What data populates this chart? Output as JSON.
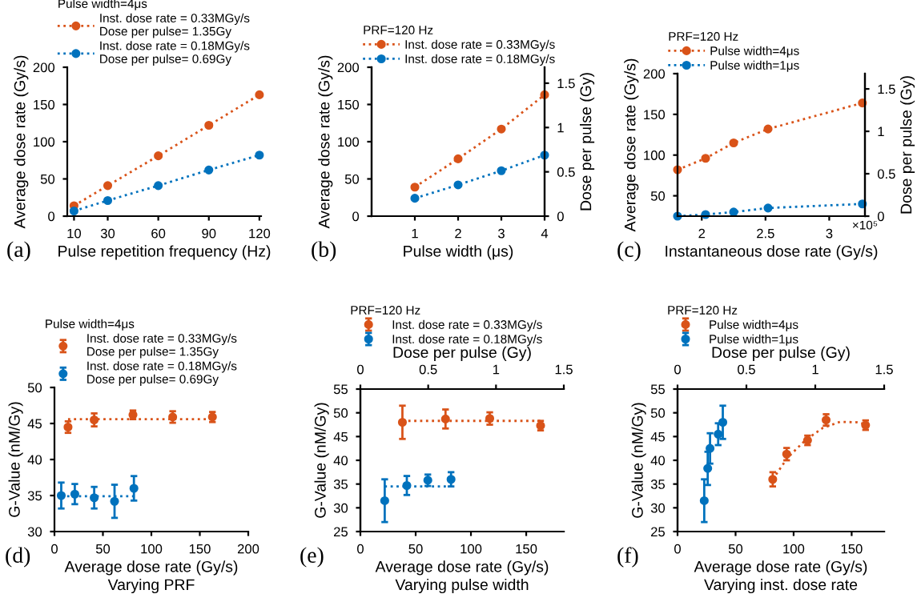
{
  "chart_data": [
    {
      "type": "line",
      "xlabel": "Pulse repetition frequency (Hz)",
      "ylabel": "Average dose rate (Gy/s)",
      "legend_title": "Pulse width=4μs",
      "legend": "top",
      "marker": "circle",
      "line_style": "dotted",
      "annotations": [
        "(a)"
      ],
      "x": [
        10,
        30,
        60,
        90,
        120
      ],
      "xlim": [
        6,
        121
      ],
      "xticks": [
        10,
        30,
        60,
        90,
        120
      ],
      "ylim": [
        0,
        200
      ],
      "yticks": [
        0,
        50,
        100,
        150,
        200
      ],
      "series": [
        {
          "name": "Inst. dose rate = 0.33MGy/s\nDose per pulse= 1.35Gy",
          "color": "#d95319",
          "values": [
            14,
            41,
            81,
            122,
            163
          ]
        },
        {
          "name": "Inst. dose rate = 0.18MGy/s\nDose per pulse= 0.69Gy",
          "color": "#0072bd",
          "values": [
            7,
            21,
            41,
            62,
            82
          ]
        }
      ]
    },
    {
      "type": "line",
      "xlabel": "Pulse width (μs)",
      "ylabel": "Average dose rate (Gy/s)",
      "y2label": "Dose per pulse (Gy)",
      "legend_title": "PRF=120 Hz",
      "legend": "top",
      "marker": "circle",
      "line_style": "dotted",
      "annotations": [
        "(b)"
      ],
      "x": [
        1,
        2,
        3,
        4
      ],
      "xlim": [
        0,
        4
      ],
      "xticks": [
        1,
        2,
        3,
        4
      ],
      "ylim": [
        0,
        200
      ],
      "yticks": [
        0,
        50,
        100,
        150,
        200
      ],
      "y2lim": [
        0,
        1.68
      ],
      "y2ticks": [
        0,
        0.5,
        1,
        1.5
      ],
      "series": [
        {
          "name": "Inst. dose rate = 0.33MGy/s",
          "color": "#d95319",
          "values": [
            39,
            77,
            117,
            163
          ]
        },
        {
          "name": "Inst. dose rate = 0.18MGy/s",
          "color": "#0072bd",
          "values": [
            24,
            42,
            61,
            82
          ]
        }
      ]
    },
    {
      "type": "line",
      "xlabel": "Instantaneous dose rate (Gy/s)",
      "ylabel": "Average dose rate (Gy/s)",
      "y2label": "Dose per pulse (Gy)",
      "legend_title": "PRF=120 Hz",
      "legend": "top",
      "marker": "circle",
      "line_style": "dotted",
      "annotations": [
        "(c)",
        "×10⁵"
      ],
      "x": [
        1.81,
        2.03,
        2.25,
        2.52,
        3.26
      ],
      "xlim": [
        1.81,
        3.28
      ],
      "xticks": [
        2,
        2.5,
        3
      ],
      "ylim": [
        25,
        200
      ],
      "yticks": [
        50,
        100,
        150,
        200
      ],
      "y2lim": [
        0,
        1.68
      ],
      "y2ticks": [
        0,
        0.5,
        1,
        1.5
      ],
      "series": [
        {
          "name": "Pulse width=4μs",
          "color": "#d95319",
          "values": [
            82,
            96,
            115,
            132,
            164
          ]
        },
        {
          "name": "Pulse width=1μs",
          "color": "#0072bd",
          "values": [
            25,
            27,
            30,
            35,
            40
          ]
        }
      ]
    },
    {
      "type": "scatter",
      "xlabel": "Average dose rate (Gy/s)",
      "ylabel": "G-Value (nM/Gy)",
      "subtitle": "Varying PRF",
      "legend_title": "Pulse width=4μs",
      "legend": "top",
      "marker": "circle",
      "line_style": "dotted",
      "annotations": [
        "(d)"
      ],
      "xlim": [
        0,
        200
      ],
      "xticks": [
        0,
        50,
        100,
        150,
        200
      ],
      "ylim": [
        30,
        50
      ],
      "yticks": [
        30,
        35,
        40,
        45,
        50
      ],
      "series": [
        {
          "name": "Inst. dose rate = 0.33MGy/s\nDose per pulse= 1.35Gy",
          "color": "#d95319",
          "x": [
            14,
            41,
            81,
            122,
            163
          ],
          "values": [
            44.5,
            45.5,
            46.2,
            45.9,
            45.9
          ],
          "errors": [
            0.8,
            0.9,
            0.6,
            0.8,
            0.7
          ]
        },
        {
          "name": "Inst. dose rate = 0.18MGy/s\nDose per pulse= 0.69Gy",
          "color": "#0072bd",
          "x": [
            7,
            21,
            41,
            62,
            82
          ],
          "values": [
            35,
            35.2,
            34.7,
            34.2,
            36
          ],
          "errors": [
            1.8,
            1.4,
            1.5,
            2.3,
            1.7
          ]
        },
        {
          "type": "line",
          "marker": "none",
          "color": "#d95319",
          "x": [
            14,
            163
          ],
          "values": [
            45.6,
            45.6
          ]
        },
        {
          "type": "line",
          "marker": "none",
          "color": "#0072bd",
          "x": [
            7,
            82
          ],
          "values": [
            34.9,
            34.9
          ]
        }
      ]
    },
    {
      "type": "scatter",
      "xlabel": "Average dose rate (Gy/s)",
      "x2label": "Dose per pulse (Gy)",
      "ylabel": "G-Value (nM/Gy)",
      "subtitle": "Varying pulse width",
      "legend_title": "PRF=120 Hz",
      "legend": "top",
      "marker": "circle",
      "line_style": "dotted",
      "annotations": [
        "(e)"
      ],
      "xlim": [
        0,
        184
      ],
      "xticks": [
        0,
        50,
        100,
        150
      ],
      "x2lim": [
        0,
        1.5
      ],
      "x2ticks": [
        0,
        0.5,
        1,
        1.5
      ],
      "ylim": [
        25,
        55
      ],
      "yticks": [
        25,
        30,
        35,
        40,
        45,
        50,
        55
      ],
      "series": [
        {
          "name": "Inst. dose rate = 0.33MGy/s",
          "color": "#d95319",
          "x": [
            38,
            77,
            117,
            163
          ],
          "values": [
            48,
            48.7,
            48.8,
            47.3
          ],
          "errors": [
            3.5,
            2,
            1.3,
            1
          ]
        },
        {
          "name": "Inst. dose rate = 0.18MGy/s",
          "color": "#0072bd",
          "x": [
            22,
            42,
            61,
            82
          ],
          "values": [
            31.5,
            34.7,
            35.8,
            36
          ],
          "errors": [
            4.5,
            2,
            1.2,
            1.5
          ]
        },
        {
          "type": "line",
          "marker": "none",
          "color": "#d95319",
          "x": [
            38,
            163
          ],
          "values": [
            48.3,
            48.3
          ]
        },
        {
          "type": "line",
          "marker": "none",
          "color": "#0072bd",
          "x": [
            22,
            82
          ],
          "values": [
            34.5,
            34.5
          ]
        }
      ]
    },
    {
      "type": "scatter",
      "xlabel": "Average dose rate (Gy/s)",
      "x2label": "Dose per pulse (Gy)",
      "ylabel": "G-Value (nM/Gy)",
      "subtitle": "Varying inst. dose rate",
      "legend_title": "PRF=120 Hz",
      "legend": "top",
      "marker": "circle",
      "line_style": "dotted",
      "annotations": [
        "(f)"
      ],
      "xlim": [
        0,
        178
      ],
      "xticks": [
        0,
        50,
        100,
        150
      ],
      "x2lim": [
        0,
        1.5
      ],
      "x2ticks": [
        0,
        0.5,
        1,
        1.5
      ],
      "ylim": [
        25,
        55
      ],
      "yticks": [
        25,
        30,
        35,
        40,
        45,
        50,
        55
      ],
      "series": [
        {
          "name": "Pulse width=4μs",
          "color": "#d95319",
          "x": [
            82,
            94,
            112,
            128,
            162
          ],
          "values": [
            36,
            41.3,
            44.2,
            48.5,
            47.4
          ],
          "errors": [
            1.5,
            1.3,
            1,
            1.2,
            1
          ]
        },
        {
          "name": "Pulse width=1μs",
          "color": "#0072bd",
          "x": [
            23,
            26,
            28,
            35,
            39
          ],
          "values": [
            31.5,
            38.3,
            42.5,
            45.5,
            48
          ],
          "errors": [
            4.5,
            3.5,
            3.2,
            2.3,
            3.5
          ]
        },
        {
          "type": "line",
          "marker": "none",
          "color": "#d95319",
          "x": [
            82,
            95,
            110,
            125,
            140,
            155,
            162
          ],
          "values": [
            36,
            40.6,
            44.2,
            46.8,
            48.1,
            48.0,
            47.6
          ]
        }
      ]
    }
  ]
}
